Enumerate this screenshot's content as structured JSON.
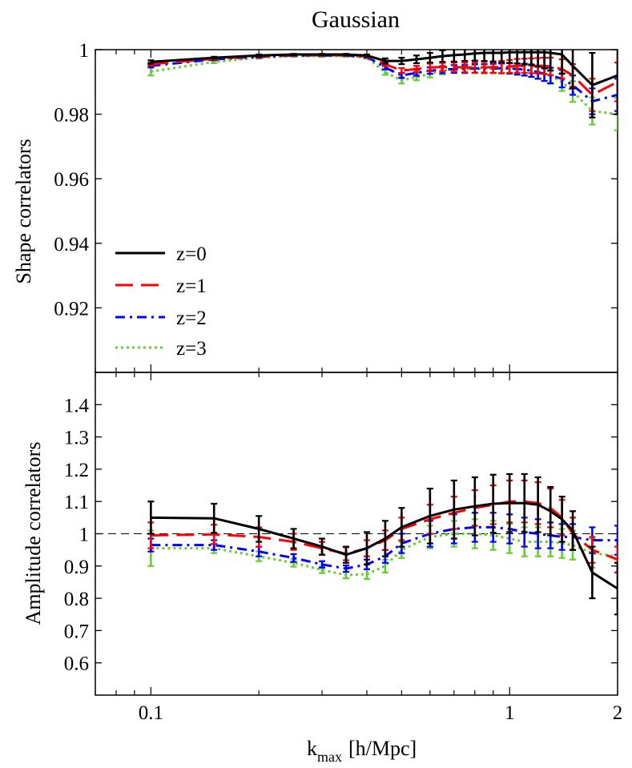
{
  "chart_data": [
    {
      "panel": "top",
      "type": "line",
      "title": "Gaussian",
      "ylabel": "Shape correlators",
      "xlabel": "",
      "xscale": "log",
      "xlim": [
        0.07,
        2
      ],
      "ylim": [
        0.9,
        1.0
      ],
      "xticks": [
        0.1,
        1,
        2
      ],
      "xtick_labels": [
        "",
        "",
        ""
      ],
      "yticks": [
        0.92,
        0.94,
        0.96,
        0.98,
        1.0
      ],
      "ytick_labels": [
        "0.92",
        "0.94",
        "0.96",
        "0.98",
        "1"
      ],
      "legend_position": "lower-left",
      "x": [
        0.1,
        0.15,
        0.2,
        0.25,
        0.3,
        0.35,
        0.4,
        0.45,
        0.5,
        0.55,
        0.6,
        0.65,
        0.7,
        0.75,
        0.8,
        0.85,
        0.9,
        0.95,
        1.0,
        1.05,
        1.1,
        1.15,
        1.2,
        1.25,
        1.3,
        1.4,
        1.5,
        1.7,
        2.0
      ],
      "series": [
        {
          "name": "z=0",
          "color": "#000000",
          "dash": "solid",
          "values": [
            0.9962,
            0.9975,
            0.9982,
            0.9985,
            0.9985,
            0.9985,
            0.9982,
            0.9965,
            0.9965,
            0.997,
            0.9975,
            0.998,
            0.9983,
            0.9985,
            0.9988,
            0.999,
            0.999,
            0.999,
            0.9992,
            0.9992,
            0.9992,
            0.9992,
            0.9992,
            0.9992,
            0.999,
            0.9985,
            0.995,
            0.989,
            0.992
          ],
          "errors": [
            0.0005,
            0.0003,
            0.0003,
            0.0002,
            0.0002,
            0.0002,
            0.0003,
            0.0008,
            0.001,
            0.0012,
            0.0015,
            0.0018,
            0.002,
            0.002,
            0.0022,
            0.0025,
            0.0028,
            0.003,
            0.0033,
            0.0035,
            0.0038,
            0.004,
            0.0045,
            0.005,
            0.0055,
            0.006,
            0.007,
            0.01,
            0.012
          ]
        },
        {
          "name": "z=1",
          "color": "#ff0000",
          "dash": "long-dash",
          "values": [
            0.9955,
            0.9972,
            0.998,
            0.9983,
            0.9983,
            0.9983,
            0.998,
            0.9955,
            0.9935,
            0.994,
            0.9945,
            0.9946,
            0.9946,
            0.9945,
            0.9945,
            0.9945,
            0.9946,
            0.9946,
            0.9948,
            0.995,
            0.995,
            0.995,
            0.995,
            0.995,
            0.9948,
            0.994,
            0.992,
            0.986,
            0.99
          ],
          "errors": [
            0.0005,
            0.0003,
            0.0003,
            0.0002,
            0.0002,
            0.0002,
            0.0003,
            0.0006,
            0.0008,
            0.001,
            0.0012,
            0.0013,
            0.0014,
            0.0015,
            0.0016,
            0.0017,
            0.0018,
            0.0019,
            0.002,
            0.0021,
            0.0022,
            0.0023,
            0.0024,
            0.0025,
            0.0027,
            0.003,
            0.0035,
            0.005,
            0.006
          ]
        },
        {
          "name": "z=2",
          "color": "#0000ff",
          "dash": "dash-dot",
          "values": [
            0.995,
            0.997,
            0.9978,
            0.9982,
            0.9982,
            0.9982,
            0.9978,
            0.9945,
            0.992,
            0.9928,
            0.9935,
            0.9938,
            0.994,
            0.994,
            0.9942,
            0.9942,
            0.9942,
            0.9942,
            0.9942,
            0.994,
            0.9938,
            0.9935,
            0.993,
            0.9925,
            0.992,
            0.991,
            0.989,
            0.984,
            0.986
          ],
          "errors": [
            0.0005,
            0.0003,
            0.0003,
            0.0002,
            0.0002,
            0.0002,
            0.0003,
            0.0006,
            0.0008,
            0.0009,
            0.001,
            0.0011,
            0.0012,
            0.0012,
            0.0013,
            0.0013,
            0.0014,
            0.0015,
            0.0016,
            0.0017,
            0.0018,
            0.0019,
            0.002,
            0.0022,
            0.0024,
            0.0027,
            0.003,
            0.004,
            0.005
          ]
        },
        {
          "name": "z=3",
          "color": "#66cc33",
          "dash": "dotted",
          "values": [
            0.9932,
            0.9962,
            0.9975,
            0.998,
            0.998,
            0.998,
            0.9975,
            0.993,
            0.9905,
            0.9915,
            0.9925,
            0.9935,
            0.994,
            0.994,
            0.994,
            0.994,
            0.9942,
            0.9942,
            0.9942,
            0.994,
            0.9938,
            0.9935,
            0.993,
            0.9925,
            0.9918,
            0.99,
            0.987,
            0.981,
            0.98
          ],
          "errors": [
            0.0012,
            0.0004,
            0.0003,
            0.0002,
            0.0002,
            0.0002,
            0.0003,
            0.0008,
            0.001,
            0.001,
            0.0011,
            0.0012,
            0.0012,
            0.0013,
            0.0013,
            0.0014,
            0.0015,
            0.0016,
            0.0017,
            0.0018,
            0.0019,
            0.002,
            0.0021,
            0.0022,
            0.0024,
            0.0028,
            0.0032,
            0.0042,
            0.005
          ]
        }
      ]
    },
    {
      "panel": "bottom",
      "type": "line",
      "title": "",
      "ylabel": "Amplitude correlators",
      "xlabel": "k",
      "xlabel_subscript": "max",
      "xlabel_suffix": "[h/Mpc]",
      "xscale": "log",
      "xlim": [
        0.07,
        2
      ],
      "ylim": [
        0.5,
        1.5
      ],
      "xticks": [
        0.1,
        1,
        2
      ],
      "xtick_labels": [
        "0.1",
        "1",
        "2"
      ],
      "yticks": [
        0.6,
        0.7,
        0.8,
        0.9,
        1.0,
        1.1,
        1.2,
        1.3,
        1.4
      ],
      "ytick_labels": [
        "0.6",
        "0.7",
        "0.8",
        "0.9",
        "1",
        "1.1",
        "1.2",
        "1.3",
        "1.4"
      ],
      "reference_line": 1.0,
      "x": [
        0.1,
        0.15,
        0.2,
        0.25,
        0.3,
        0.35,
        0.4,
        0.45,
        0.5,
        0.6,
        0.7,
        0.8,
        0.9,
        1.0,
        1.1,
        1.2,
        1.3,
        1.4,
        1.5,
        1.7,
        2.0
      ],
      "series": [
        {
          "name": "z=0",
          "color": "#000000",
          "dash": "solid",
          "values": [
            1.05,
            1.048,
            1.015,
            0.985,
            0.96,
            0.935,
            0.955,
            0.985,
            1.02,
            1.055,
            1.075,
            1.085,
            1.093,
            1.095,
            1.095,
            1.09,
            1.07,
            1.045,
            1.01,
            0.88,
            0.83
          ],
          "errors": [
            0.05,
            0.045,
            0.04,
            0.03,
            0.025,
            0.025,
            0.05,
            0.055,
            0.06,
            0.085,
            0.09,
            0.09,
            0.09,
            0.09,
            0.09,
            0.085,
            0.075,
            0.07,
            0.06,
            0.08,
            0.08
          ]
        },
        {
          "name": "z=1",
          "color": "#ff0000",
          "dash": "long-dash",
          "values": [
            0.995,
            0.998,
            0.99,
            0.975,
            0.955,
            0.938,
            0.955,
            0.98,
            1.015,
            1.045,
            1.065,
            1.08,
            1.09,
            1.1,
            1.1,
            1.095,
            1.08,
            1.05,
            1.0,
            0.95,
            0.92
          ],
          "errors": [
            0.04,
            0.03,
            0.03,
            0.025,
            0.02,
            0.02,
            0.025,
            0.03,
            0.035,
            0.045,
            0.05,
            0.055,
            0.06,
            0.065,
            0.065,
            0.065,
            0.06,
            0.055,
            0.05,
            0.04,
            0.04
          ]
        },
        {
          "name": "z=2",
          "color": "#0000ff",
          "dash": "dash-dot",
          "values": [
            0.965,
            0.965,
            0.945,
            0.925,
            0.905,
            0.892,
            0.905,
            0.93,
            0.97,
            1.0,
            1.015,
            1.02,
            1.02,
            1.015,
            1.005,
            1.0,
            0.995,
            0.99,
            0.99,
            0.98,
            0.98
          ],
          "errors": [
            0.02,
            0.015,
            0.015,
            0.012,
            0.01,
            0.01,
            0.015,
            0.02,
            0.03,
            0.04,
            0.045,
            0.045,
            0.045,
            0.045,
            0.045,
            0.045,
            0.04,
            0.04,
            0.04,
            0.04,
            0.045
          ]
        },
        {
          "name": "z=3",
          "color": "#66cc33",
          "dash": "dotted",
          "values": [
            0.955,
            0.955,
            0.93,
            0.91,
            0.888,
            0.872,
            0.875,
            0.9,
            0.95,
            0.99,
            1.0,
            1.0,
            0.995,
            0.985,
            0.975,
            0.975,
            0.975,
            0.97,
            0.965,
            0.94,
            0.93
          ],
          "errors": [
            0.055,
            0.015,
            0.015,
            0.012,
            0.01,
            0.01,
            0.015,
            0.02,
            0.025,
            0.035,
            0.04,
            0.045,
            0.045,
            0.045,
            0.045,
            0.045,
            0.045,
            0.045,
            0.045,
            0.045,
            0.05
          ]
        }
      ]
    }
  ]
}
